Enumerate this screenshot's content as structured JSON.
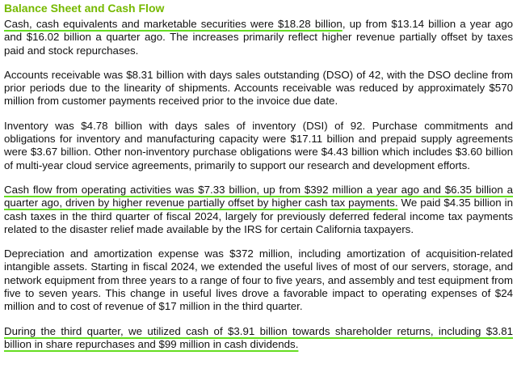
{
  "header": {
    "title": "Balance Sheet and Cash Flow"
  },
  "paragraphs": [
    [
      "Cash, cash equivalents and marketable securities were $18.28 billion",
      ", up from $13.14 billion a year ago and $16.02 billion a quarter ago. The increases primarily reflect higher revenue partially offset by taxes paid and stock repurchases."
    ],
    [
      "Accounts receivable was $8.31 billion with days sales outstanding (DSO) of 42, with the DSO decline from prior periods due to the linearity of shipments. Accounts receivable was reduced by approximately $570 million from customer payments received prior to the invoice due date."
    ],
    [
      "Inventory was $4.78 billion with days sales of inventory (DSI) of 92. Purchase commitments and obligations for inventory and manufacturing capacity were $17.11 billion and prepaid supply agreements were $3.67 billion. Other non-inventory purchase obligations were $4.43 billion which includes $3.60 billion of multi-year cloud service agreements, primarily to support our research and development efforts."
    ],
    [
      "Cash flow from operating activities was $7.33 billion, up from $392 million a year ago and $6.35 billion a quarter ago, driven by higher revenue partially offset by higher cash tax payments.",
      " We paid $4.35 billion in cash taxes in the third quarter of fiscal 2024, largely for previously deferred federal income tax payments related to the disaster relief made available by the IRS for certain California taxpayers."
    ],
    [
      "Depreciation and amortization expense was $372 million, including amortization of acquisition-related intangible assets. Starting in fiscal 2024, we extended the useful lives of most of our servers, storage, and network equipment from three years to a range of four to five years, and assembly and test equipment from five to seven years. This change in useful lives drove a favorable impact to operating expenses of $24 million and to cost of revenue of $17 million in the third quarter."
    ],
    [
      "During the third quarter, we utilized cash of $3.91 billion towards shareholder returns, including $3.81 billion in share repurchases and $99 million in cash dividends."
    ]
  ]
}
